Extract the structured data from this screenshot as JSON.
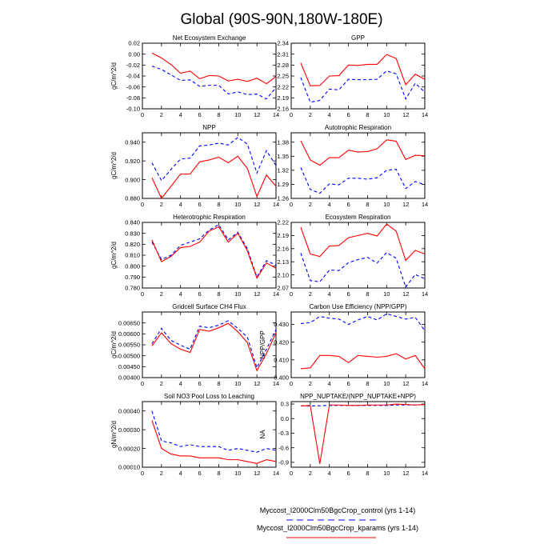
{
  "figure": {
    "title": "Global (90S-90N,180W-180E)",
    "legend": [
      {
        "label": "Myccost_I2000Clm50BgcCrop_control (yrs 1-14)",
        "color": "#0000ff",
        "dash": true
      },
      {
        "label": "Myccost_I2000Clm50BgcCrop_kparams (yrs 1-14)",
        "color": "#ff0000",
        "dash": false
      }
    ]
  },
  "chart_data": [
    {
      "type": "line",
      "title": "Net Ecosystem Exchange",
      "ylabel": "gC/m^2/d",
      "xlim": [
        0,
        14
      ],
      "ylim": [
        -0.1,
        0.02
      ],
      "xticks": [
        "0",
        "2",
        "4",
        "6",
        "8",
        "10",
        "12",
        "14"
      ],
      "yticks": [
        "-0.10",
        "-0.08",
        "-0.06",
        "-0.04",
        "-0.02",
        "0.00",
        "0.02"
      ],
      "x": [
        1,
        2,
        3,
        4,
        5,
        6,
        7,
        8,
        9,
        10,
        11,
        12,
        13,
        14
      ],
      "series": [
        {
          "color": "#0000ff",
          "dash": true,
          "values": [
            -0.022,
            -0.028,
            -0.038,
            -0.048,
            -0.047,
            -0.059,
            -0.057,
            -0.057,
            -0.073,
            -0.069,
            -0.074,
            -0.073,
            -0.082,
            -0.061
          ]
        },
        {
          "color": "#ff0000",
          "dash": false,
          "values": [
            0.002,
            -0.007,
            -0.019,
            -0.035,
            -0.031,
            -0.045,
            -0.039,
            -0.04,
            -0.049,
            -0.046,
            -0.05,
            -0.044,
            -0.054,
            -0.041
          ]
        }
      ]
    },
    {
      "type": "line",
      "title": "GPP",
      "ylabel": "",
      "xlim": [
        0,
        14
      ],
      "ylim": [
        2.16,
        2.34
      ],
      "xticks": [
        "0",
        "2",
        "4",
        "6",
        "8",
        "10",
        "12",
        "14"
      ],
      "yticks": [
        "2.16",
        "2.19",
        "2.22",
        "2.25",
        "2.28",
        "2.31",
        "2.34"
      ],
      "x": [
        1,
        2,
        3,
        4,
        5,
        6,
        7,
        8,
        9,
        10,
        11,
        12,
        13,
        14
      ],
      "series": [
        {
          "color": "#0000ff",
          "dash": true,
          "values": [
            2.246,
            2.178,
            2.183,
            2.214,
            2.212,
            2.241,
            2.24,
            2.24,
            2.241,
            2.264,
            2.256,
            2.187,
            2.23,
            2.206
          ]
        },
        {
          "color": "#ff0000",
          "dash": false,
          "values": [
            2.286,
            2.223,
            2.224,
            2.25,
            2.251,
            2.28,
            2.279,
            2.282,
            2.282,
            2.309,
            2.298,
            2.226,
            2.255,
            2.241
          ]
        }
      ]
    },
    {
      "type": "line",
      "title": "NPP",
      "ylabel": "gC/m^2/d",
      "xlim": [
        0,
        14
      ],
      "ylim": [
        0.88,
        0.95
      ],
      "xticks": [
        "0",
        "2",
        "4",
        "6",
        "8",
        "10",
        "12",
        "14"
      ],
      "yticks": [
        "0.880",
        "0.900",
        "0.920",
        "0.940"
      ],
      "x": [
        1,
        2,
        3,
        4,
        5,
        6,
        7,
        8,
        9,
        10,
        11,
        12,
        13,
        14
      ],
      "series": [
        {
          "color": "#0000ff",
          "dash": true,
          "values": [
            0.918,
            0.899,
            0.911,
            0.922,
            0.923,
            0.936,
            0.937,
            0.939,
            0.937,
            0.945,
            0.938,
            0.907,
            0.931,
            0.915
          ]
        },
        {
          "color": "#ff0000",
          "dash": false,
          "values": [
            0.902,
            0.88,
            0.893,
            0.906,
            0.906,
            0.919,
            0.921,
            0.924,
            0.918,
            0.925,
            0.912,
            0.882,
            0.905,
            0.893
          ]
        }
      ]
    },
    {
      "type": "line",
      "title": "Autotrophic Respiration",
      "ylabel": "",
      "xlim": [
        0,
        14
      ],
      "ylim": [
        1.26,
        1.4
      ],
      "xticks": [
        "0",
        "2",
        "4",
        "6",
        "8",
        "10",
        "12",
        "14"
      ],
      "yticks": [
        "1.26",
        "1.29",
        "1.32",
        "1.35",
        "1.38"
      ],
      "x": [
        1,
        2,
        3,
        4,
        5,
        6,
        7,
        8,
        9,
        10,
        11,
        12,
        13,
        14
      ],
      "series": [
        {
          "color": "#0000ff",
          "dash": true,
          "values": [
            1.326,
            1.279,
            1.271,
            1.291,
            1.289,
            1.303,
            1.303,
            1.301,
            1.304,
            1.32,
            1.322,
            1.281,
            1.296,
            1.289
          ]
        },
        {
          "color": "#ff0000",
          "dash": false,
          "values": [
            1.383,
            1.342,
            1.331,
            1.347,
            1.347,
            1.363,
            1.359,
            1.36,
            1.366,
            1.385,
            1.382,
            1.343,
            1.352,
            1.351
          ]
        }
      ]
    },
    {
      "type": "line",
      "title": "Heterotrophic Respiration",
      "ylabel": "gC/m^2/d",
      "xlim": [
        0,
        14
      ],
      "ylim": [
        0.78,
        0.84
      ],
      "xticks": [
        "0",
        "2",
        "4",
        "6",
        "8",
        "10",
        "12",
        "14"
      ],
      "yticks": [
        "0.780",
        "0.790",
        "0.800",
        "0.810",
        "0.820",
        "0.830",
        "0.840"
      ],
      "x": [
        1,
        2,
        3,
        4,
        5,
        6,
        7,
        8,
        9,
        10,
        11,
        12,
        13,
        14
      ],
      "series": [
        {
          "color": "#0000ff",
          "dash": true,
          "values": [
            0.822,
            0.806,
            0.81,
            0.819,
            0.822,
            0.825,
            0.833,
            0.838,
            0.824,
            0.831,
            0.816,
            0.79,
            0.805,
            0.801
          ]
        },
        {
          "color": "#ff0000",
          "dash": false,
          "values": [
            0.824,
            0.804,
            0.809,
            0.817,
            0.818,
            0.822,
            0.832,
            0.836,
            0.822,
            0.83,
            0.814,
            0.789,
            0.803,
            0.798
          ]
        }
      ]
    },
    {
      "type": "line",
      "title": "Ecosystem Respiration",
      "ylabel": "",
      "xlim": [
        0,
        14
      ],
      "ylim": [
        2.07,
        2.22
      ],
      "xticks": [
        "0",
        "2",
        "4",
        "6",
        "8",
        "10",
        "12",
        "14"
      ],
      "yticks": [
        "2.07",
        "2.10",
        "2.13",
        "2.16",
        "2.19",
        "2.22"
      ],
      "x": [
        1,
        2,
        3,
        4,
        5,
        6,
        7,
        8,
        9,
        10,
        11,
        12,
        13,
        14
      ],
      "series": [
        {
          "color": "#0000ff",
          "dash": true,
          "values": [
            2.15,
            2.087,
            2.084,
            2.111,
            2.11,
            2.128,
            2.135,
            2.14,
            2.127,
            2.151,
            2.138,
            2.072,
            2.101,
            2.091
          ]
        },
        {
          "color": "#ff0000",
          "dash": false,
          "values": [
            2.209,
            2.148,
            2.142,
            2.166,
            2.167,
            2.185,
            2.19,
            2.195,
            2.189,
            2.216,
            2.2,
            2.133,
            2.156,
            2.148
          ]
        }
      ]
    },
    {
      "type": "line",
      "title": "Gridcell Surface CH4 Flux",
      "ylabel": "gC/m^2/d",
      "xlim": [
        0,
        14
      ],
      "ylim": [
        0.004,
        0.007
      ],
      "xticks": [
        "0",
        "2",
        "4",
        "6",
        "8",
        "10",
        "12",
        "14"
      ],
      "yticks": [
        "0.00400",
        "0.00450",
        "0.00500",
        "0.00550",
        "0.00600",
        "0.00650"
      ],
      "x": [
        1,
        2,
        3,
        4,
        5,
        6,
        7,
        8,
        9,
        10,
        11,
        12,
        13,
        14
      ],
      "series": [
        {
          "color": "#0000ff",
          "dash": true,
          "values": [
            0.00555,
            0.00625,
            0.0057,
            0.00548,
            0.0053,
            0.00635,
            0.00628,
            0.0064,
            0.0066,
            0.00625,
            0.00585,
            0.00445,
            0.0053,
            0.0062
          ]
        },
        {
          "color": "#ff0000",
          "dash": false,
          "values": [
            0.00545,
            0.00605,
            0.00555,
            0.0053,
            0.00515,
            0.0062,
            0.00612,
            0.00628,
            0.00648,
            0.0061,
            0.0056,
            0.00432,
            0.0051,
            0.00605
          ]
        }
      ]
    },
    {
      "type": "line",
      "title": "Carbon Use Efficiency (NPP/GPP)",
      "ylabel": "NPP/GPP",
      "xlim": [
        0,
        14
      ],
      "ylim": [
        0.4,
        0.437
      ],
      "xticks": [
        "0",
        "2",
        "4",
        "6",
        "8",
        "10",
        "12",
        "14"
      ],
      "yticks": [
        "0.400",
        "0.410",
        "0.420",
        "0.430"
      ],
      "x": [
        1,
        2,
        3,
        4,
        5,
        6,
        7,
        8,
        9,
        10,
        11,
        12,
        13,
        14
      ],
      "series": [
        {
          "color": "#0000ff",
          "dash": true,
          "values": [
            0.4305,
            0.431,
            0.4345,
            0.4335,
            0.433,
            0.43,
            0.4325,
            0.4345,
            0.4325,
            0.436,
            0.4345,
            0.433,
            0.434,
            0.4265
          ]
        },
        {
          "color": "#ff0000",
          "dash": false,
          "values": [
            0.405,
            0.4055,
            0.4125,
            0.4125,
            0.412,
            0.4085,
            0.4125,
            0.412,
            0.4115,
            0.412,
            0.4135,
            0.4105,
            0.4125,
            0.405
          ]
        }
      ]
    },
    {
      "type": "line",
      "title": "Soil NO3 Pool Loss to Leaching",
      "ylabel": "gN/m^2/d",
      "xlim": [
        0,
        14
      ],
      "ylim": [
        0.0001,
        0.00045
      ],
      "xticks": [
        "0",
        "2",
        "4",
        "6",
        "8",
        "10",
        "12",
        "14"
      ],
      "yticks": [
        "0.00010",
        "0.00020",
        "0.00030",
        "0.00040"
      ],
      "x": [
        1,
        2,
        3,
        4,
        5,
        6,
        7,
        8,
        9,
        10,
        11,
        12,
        13,
        14
      ],
      "series": [
        {
          "color": "#0000ff",
          "dash": true,
          "values": [
            0.0004,
            0.00024,
            0.00023,
            0.00021,
            0.00022,
            0.00021,
            0.00021,
            0.00021,
            0.00019,
            0.0002,
            0.00019,
            0.00018,
            0.0002,
            0.00019
          ]
        },
        {
          "color": "#ff0000",
          "dash": false,
          "values": [
            0.00035,
            0.0002,
            0.00017,
            0.00016,
            0.00016,
            0.00015,
            0.00015,
            0.00015,
            0.00014,
            0.00014,
            0.00013,
            0.00012,
            0.00014,
            0.00013
          ]
        }
      ]
    },
    {
      "type": "line",
      "title": "NPP_NUPTAKE/(NPP_NUPTAKE+NPP)",
      "ylabel": "NA",
      "xlim": [
        0,
        14
      ],
      "ylim": [
        -1.0,
        0.35
      ],
      "xticks": [
        "0",
        "2",
        "4",
        "6",
        "8",
        "10",
        "12",
        "14"
      ],
      "yticks": [
        "-0.9",
        "-0.6",
        "-0.3",
        "0.0",
        "0.3"
      ],
      "x": [
        1,
        2,
        3,
        4,
        5,
        6,
        7,
        8,
        9,
        10,
        11,
        12,
        13,
        14
      ],
      "series": [
        {
          "color": "#0000ff",
          "dash": true,
          "values": [
            0.26,
            0.26,
            0.265,
            0.27,
            0.27,
            0.27,
            0.27,
            0.27,
            0.27,
            0.27,
            0.28,
            0.28,
            0.28,
            0.29
          ]
        },
        {
          "color": "#ff0000",
          "dash": false,
          "values": [
            0.26,
            0.27,
            -0.93,
            0.28,
            0.28,
            0.27,
            0.27,
            0.28,
            0.28,
            0.28,
            0.3,
            0.29,
            0.28,
            0.29
          ]
        }
      ]
    }
  ]
}
